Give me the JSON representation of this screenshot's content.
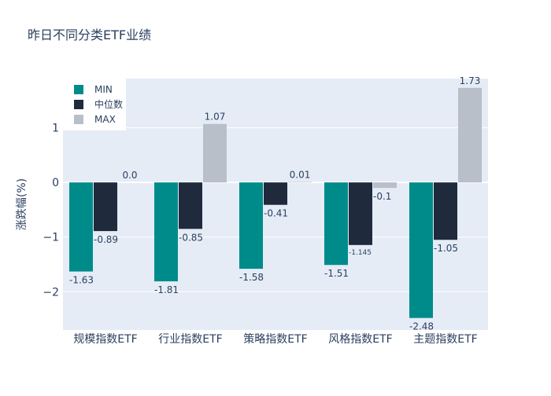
{
  "chart_data": {
    "type": "bar",
    "title": "昨日不同分类ETF业绩",
    "ylabel": "涨跌幅(%)",
    "xlabel": "",
    "categories": [
      "规模指数ETF",
      "行业指数ETF",
      "策略指数ETF",
      "风格指数ETF",
      "主题指数ETF"
    ],
    "series": [
      {
        "name": "MIN",
        "color": "#008b8b",
        "values": [
          -1.63,
          -1.81,
          -1.58,
          -1.51,
          -2.48
        ],
        "labels": [
          "-1.63",
          "-1.81",
          "-1.58",
          "-1.51",
          "-2.48"
        ]
      },
      {
        "name": "中位数",
        "color": "#1f2a3c",
        "values": [
          -0.89,
          -0.85,
          -0.41,
          -1.145,
          -1.05
        ],
        "labels": [
          "-0.89",
          "-0.85",
          "-0.41",
          "-1.145",
          "-1.05"
        ]
      },
      {
        "name": "MAX",
        "color": "#b8bfc8",
        "values": [
          0.0,
          1.07,
          0.01,
          -0.1,
          1.73
        ],
        "labels": [
          "0.0",
          "1.07",
          "0.01",
          "-0.1",
          "1.73"
        ]
      }
    ],
    "ylim": [
      -2.7,
      1.9
    ],
    "yticks": [
      -2,
      -1,
      0,
      1
    ],
    "ytick_labels": [
      "−2",
      "−1",
      "0",
      "1"
    ],
    "grid": true,
    "legend_position": "top-left",
    "plot_background": "#e5ecf6"
  }
}
